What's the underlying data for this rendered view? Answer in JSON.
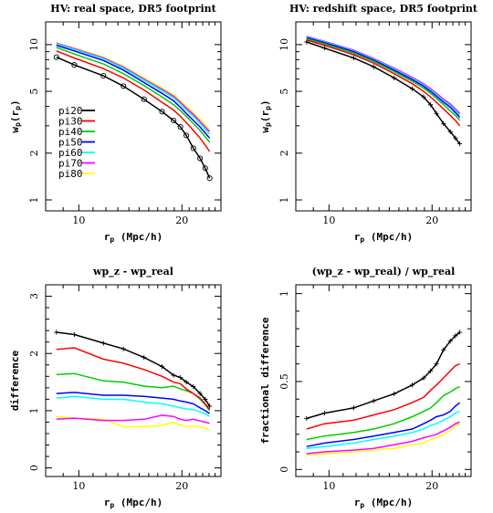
{
  "chart_data": [
    {
      "type": "line",
      "title": "HV: real space, DR5 footprint",
      "xlabel": "r_p (Mpc/h)",
      "ylabel": "w_p(r_p)",
      "xscale": "log",
      "yscale": "log",
      "xlim": [
        8.0,
        26.0
      ],
      "ylim": [
        0.85,
        14.0
      ],
      "xticks": [
        10,
        20
      ],
      "yticks": [
        1,
        2,
        5,
        10
      ],
      "legend": "left-middle",
      "markers": {
        "series": "pi20",
        "symbol": "circle"
      },
      "x": [
        8.6,
        9.7,
        11.8,
        13.5,
        15.5,
        17.5,
        18.9,
        19.8,
        20.6,
        21.6,
        22.6,
        23.4,
        24.1
      ],
      "series": [
        {
          "name": "pi20",
          "color": "#000000",
          "values": [
            8.3,
            7.4,
            6.3,
            5.4,
            4.45,
            3.7,
            3.25,
            2.95,
            2.6,
            2.15,
            1.85,
            1.6,
            1.38
          ]
        },
        {
          "name": "pi30",
          "color": "#ff0000",
          "values": [
            9.1,
            8.2,
            7.0,
            6.1,
            5.1,
            4.25,
            3.8,
            3.45,
            3.15,
            2.8,
            2.5,
            2.25,
            2.05
          ]
        },
        {
          "name": "pi40",
          "color": "#00cc00",
          "values": [
            9.6,
            8.7,
            7.5,
            6.5,
            5.45,
            4.6,
            4.1,
            3.75,
            3.45,
            3.1,
            2.8,
            2.55,
            2.35
          ]
        },
        {
          "name": "pi50",
          "color": "#0000ff",
          "values": [
            9.9,
            9.1,
            7.9,
            6.85,
            5.7,
            4.85,
            4.35,
            3.95,
            3.6,
            3.25,
            2.95,
            2.7,
            2.5
          ]
        },
        {
          "name": "pi60",
          "color": "#00ffff",
          "values": [
            10.1,
            9.3,
            8.1,
            7.05,
            5.9,
            5.05,
            4.55,
            4.15,
            3.8,
            3.45,
            3.1,
            2.85,
            2.65
          ]
        },
        {
          "name": "pi70",
          "color": "#ff00ff",
          "values": [
            10.2,
            9.4,
            8.2,
            7.15,
            6.0,
            5.15,
            4.65,
            4.25,
            3.9,
            3.55,
            3.2,
            2.95,
            2.75
          ]
        },
        {
          "name": "pi80",
          "color": "#ffff00",
          "values": [
            10.3,
            9.5,
            8.3,
            7.25,
            6.1,
            5.25,
            4.75,
            4.35,
            4.0,
            3.65,
            3.3,
            3.05,
            2.85
          ]
        }
      ]
    },
    {
      "type": "line",
      "title": "HV: redshift space, DR5 footprint",
      "xlabel": "r_p (Mpc/h)",
      "ylabel": "w_p(r_p)",
      "xscale": "log",
      "yscale": "log",
      "xlim": [
        8.0,
        26.0
      ],
      "ylim": [
        0.85,
        14.0
      ],
      "xticks": [
        10,
        20
      ],
      "yticks": [
        1,
        2,
        5,
        10
      ],
      "markers": {
        "series": "pi20",
        "symbol": "plus"
      },
      "x": [
        8.6,
        9.7,
        11.8,
        13.5,
        15.5,
        17.5,
        18.9,
        19.8,
        20.6,
        21.6,
        22.6,
        23.4,
        24.1
      ],
      "series": [
        {
          "name": "pi20",
          "color": "#000000",
          "values": [
            10.4,
            9.5,
            8.2,
            7.2,
            6.1,
            5.2,
            4.6,
            4.1,
            3.6,
            3.1,
            2.75,
            2.5,
            2.3
          ]
        },
        {
          "name": "pi30",
          "color": "#ff0000",
          "values": [
            10.7,
            9.9,
            8.6,
            7.6,
            6.5,
            5.6,
            5.0,
            4.6,
            4.25,
            3.85,
            3.5,
            3.25,
            3.0
          ]
        },
        {
          "name": "pi40",
          "color": "#00cc00",
          "values": [
            10.9,
            10.1,
            8.8,
            7.8,
            6.7,
            5.8,
            5.25,
            4.85,
            4.5,
            4.1,
            3.75,
            3.5,
            3.25
          ]
        },
        {
          "name": "pi50",
          "color": "#0000ff",
          "values": [
            11.1,
            10.3,
            9.0,
            7.95,
            6.85,
            5.95,
            5.4,
            5.0,
            4.65,
            4.25,
            3.95,
            3.65,
            3.4
          ]
        },
        {
          "name": "pi60",
          "color": "#00ffff",
          "values": [
            11.2,
            10.4,
            9.1,
            8.05,
            6.95,
            6.05,
            5.5,
            5.1,
            4.75,
            4.35,
            4.05,
            3.75,
            3.5
          ]
        },
        {
          "name": "pi70",
          "color": "#ff00ff",
          "values": [
            11.3,
            10.5,
            9.2,
            8.15,
            7.05,
            6.15,
            5.6,
            5.2,
            4.85,
            4.45,
            4.15,
            3.85,
            3.6
          ]
        },
        {
          "name": "pi80",
          "color": "#ffff00",
          "values": [
            11.2,
            10.45,
            9.15,
            8.1,
            7.0,
            6.1,
            5.55,
            5.15,
            4.8,
            4.4,
            4.1,
            3.8,
            3.55
          ]
        }
      ]
    },
    {
      "type": "line",
      "title": "wp_z - wp_real",
      "xlabel": "r_p (Mpc/h)",
      "ylabel": "difference",
      "xscale": "log",
      "yscale": "linear",
      "xlim": [
        8.0,
        26.0
      ],
      "ylim": [
        -0.15,
        3.2
      ],
      "xticks": [
        10,
        20
      ],
      "yticks": [
        0,
        1,
        2,
        3
      ],
      "markers": {
        "series": "pi20",
        "symbol": "plus"
      },
      "x": [
        8.6,
        9.7,
        11.8,
        13.5,
        15.5,
        17.5,
        18.9,
        19.8,
        20.6,
        21.6,
        22.6,
        23.4,
        24.1
      ],
      "series": [
        {
          "name": "pi20",
          "color": "#000000",
          "values": [
            2.37,
            2.33,
            2.18,
            2.08,
            1.93,
            1.77,
            1.62,
            1.58,
            1.5,
            1.42,
            1.3,
            1.2,
            1.08
          ]
        },
        {
          "name": "pi30",
          "color": "#ff0000",
          "values": [
            2.07,
            2.1,
            1.9,
            1.83,
            1.72,
            1.6,
            1.5,
            1.47,
            1.38,
            1.3,
            1.22,
            1.12,
            1.02
          ]
        },
        {
          "name": "pi40",
          "color": "#00cc00",
          "values": [
            1.63,
            1.65,
            1.52,
            1.5,
            1.43,
            1.4,
            1.43,
            1.38,
            1.35,
            1.3,
            1.2,
            1.1,
            1.0
          ]
        },
        {
          "name": "pi50",
          "color": "#0000ff",
          "values": [
            1.3,
            1.32,
            1.27,
            1.27,
            1.25,
            1.22,
            1.2,
            1.17,
            1.15,
            1.12,
            1.05,
            1.0,
            0.95
          ]
        },
        {
          "name": "pi60",
          "color": "#00ffff",
          "values": [
            1.22,
            1.25,
            1.2,
            1.2,
            1.15,
            1.12,
            1.08,
            1.05,
            1.03,
            1.02,
            0.98,
            0.95,
            0.9
          ]
        },
        {
          "name": "pi70",
          "color": "#ff00ff",
          "values": [
            0.85,
            0.87,
            0.83,
            0.83,
            0.85,
            0.92,
            0.9,
            0.85,
            0.83,
            0.85,
            0.82,
            0.8,
            0.78
          ]
        },
        {
          "name": "pi80",
          "color": "#ffff00",
          "values": [
            0.9,
            0.87,
            0.85,
            0.72,
            0.72,
            0.74,
            0.8,
            0.75,
            0.72,
            0.73,
            0.72,
            0.7,
            0.65
          ]
        }
      ]
    },
    {
      "type": "line",
      "title": "(wp_z - wp_real) / wp_real",
      "xlabel": "r_p (Mpc/h)",
      "ylabel": "fractional difference",
      "xscale": "log",
      "yscale": "linear",
      "xlim": [
        8.0,
        26.0
      ],
      "ylim": [
        -0.04,
        1.05
      ],
      "xticks": [
        10,
        20
      ],
      "yticks": [
        0,
        0.5,
        1
      ],
      "markers": {
        "series": "pi20",
        "symbol": "plus"
      },
      "x": [
        8.6,
        9.7,
        11.8,
        13.5,
        15.5,
        17.5,
        18.9,
        19.8,
        20.6,
        21.6,
        22.6,
        23.4,
        24.1
      ],
      "series": [
        {
          "name": "pi20",
          "color": "#000000",
          "values": [
            0.29,
            0.32,
            0.35,
            0.39,
            0.43,
            0.48,
            0.52,
            0.56,
            0.6,
            0.68,
            0.73,
            0.76,
            0.78
          ]
        },
        {
          "name": "pi30",
          "color": "#ff0000",
          "values": [
            0.23,
            0.26,
            0.28,
            0.31,
            0.34,
            0.38,
            0.41,
            0.45,
            0.48,
            0.52,
            0.56,
            0.59,
            0.6
          ]
        },
        {
          "name": "pi40",
          "color": "#00cc00",
          "values": [
            0.17,
            0.19,
            0.21,
            0.23,
            0.26,
            0.3,
            0.33,
            0.35,
            0.38,
            0.42,
            0.44,
            0.46,
            0.47
          ]
        },
        {
          "name": "pi50",
          "color": "#0000ff",
          "values": [
            0.13,
            0.15,
            0.17,
            0.19,
            0.21,
            0.23,
            0.26,
            0.28,
            0.3,
            0.31,
            0.33,
            0.36,
            0.38
          ]
        },
        {
          "name": "pi60",
          "color": "#00ffff",
          "values": [
            0.12,
            0.13,
            0.15,
            0.17,
            0.19,
            0.21,
            0.23,
            0.25,
            0.26,
            0.28,
            0.3,
            0.32,
            0.33
          ]
        },
        {
          "name": "pi70",
          "color": "#ff00ff",
          "values": [
            0.09,
            0.1,
            0.11,
            0.12,
            0.14,
            0.16,
            0.18,
            0.19,
            0.2,
            0.22,
            0.24,
            0.26,
            0.27
          ]
        },
        {
          "name": "pi80",
          "color": "#ffff00",
          "values": [
            0.08,
            0.09,
            0.1,
            0.11,
            0.12,
            0.14,
            0.15,
            0.17,
            0.18,
            0.2,
            0.22,
            0.25,
            0.26
          ]
        }
      ]
    }
  ]
}
